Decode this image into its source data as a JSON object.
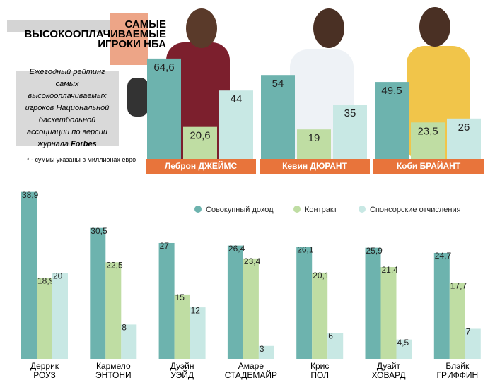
{
  "title": [
    "САМЫЕ",
    "ВЫСОКООПЛАЧИВАЕМЫЕ",
    "ИГРОКИ НБА"
  ],
  "description": "Ежегодный рейтинг самых высокооплачиваемых игроков Национальной баскетбольной ассоциации по версии журнала",
  "source": "Forbes",
  "note": "* - суммы указаны в миллионах евро",
  "chart_data": [
    {
      "type": "bar",
      "categories": [
        "Леброн ДЖЕЙМС",
        "Кевин ДЮРАНТ",
        "Коби БРАЙАНТ"
      ],
      "series": [
        {
          "color": "#6db3ae",
          "values": [
            64.6,
            54,
            49.5
          ],
          "value_labels": [
            "64,6",
            "54",
            "49,5"
          ]
        },
        {
          "color": "#bfdda3",
          "values": [
            20.6,
            19,
            23.5
          ],
          "value_labels": [
            "20,6",
            "19",
            "23,5"
          ]
        },
        {
          "color": "#c8e8e4",
          "values": [
            44,
            35,
            26
          ],
          "value_labels": [
            "44",
            "35",
            "26"
          ]
        }
      ],
      "ylim": [
        0,
        70
      ],
      "label_color": "#e8743b"
    },
    {
      "type": "bar",
      "categories": [
        "Деррик РОУЗ",
        "Кармело ЭНТОНИ",
        "Дуэйн УЭЙД",
        "Амаре СТАДЕМАЙР",
        "Крис ПОЛ",
        "Дуайт ХОВАРД",
        "Блэйк ГРИФФИН"
      ],
      "series": [
        {
          "name": "Совокупный доход",
          "color": "#6db3ae",
          "values": [
            38.9,
            30.5,
            27,
            26.4,
            26.1,
            25.9,
            24.7
          ],
          "value_labels": [
            "38,9",
            "30,5",
            "27",
            "26,4",
            "26,1",
            "25,9",
            "24,7"
          ]
        },
        {
          "name": "Контракт",
          "color": "#bfdda3",
          "values": [
            18.9,
            22.5,
            15,
            23.4,
            20.1,
            21.4,
            17.7
          ],
          "value_labels": [
            "18,9",
            "22,5",
            "15",
            "23,4",
            "20,1",
            "21,4",
            "17,7"
          ]
        },
        {
          "name": "Спонсорские отчисления",
          "color": "#c8e8e4",
          "values": [
            20,
            8,
            12,
            3,
            6,
            4.5,
            7
          ],
          "value_labels": [
            "20",
            "8",
            "12",
            "3",
            "6",
            "4,5",
            "7"
          ]
        }
      ],
      "ylim": [
        0,
        40
      ]
    }
  ]
}
